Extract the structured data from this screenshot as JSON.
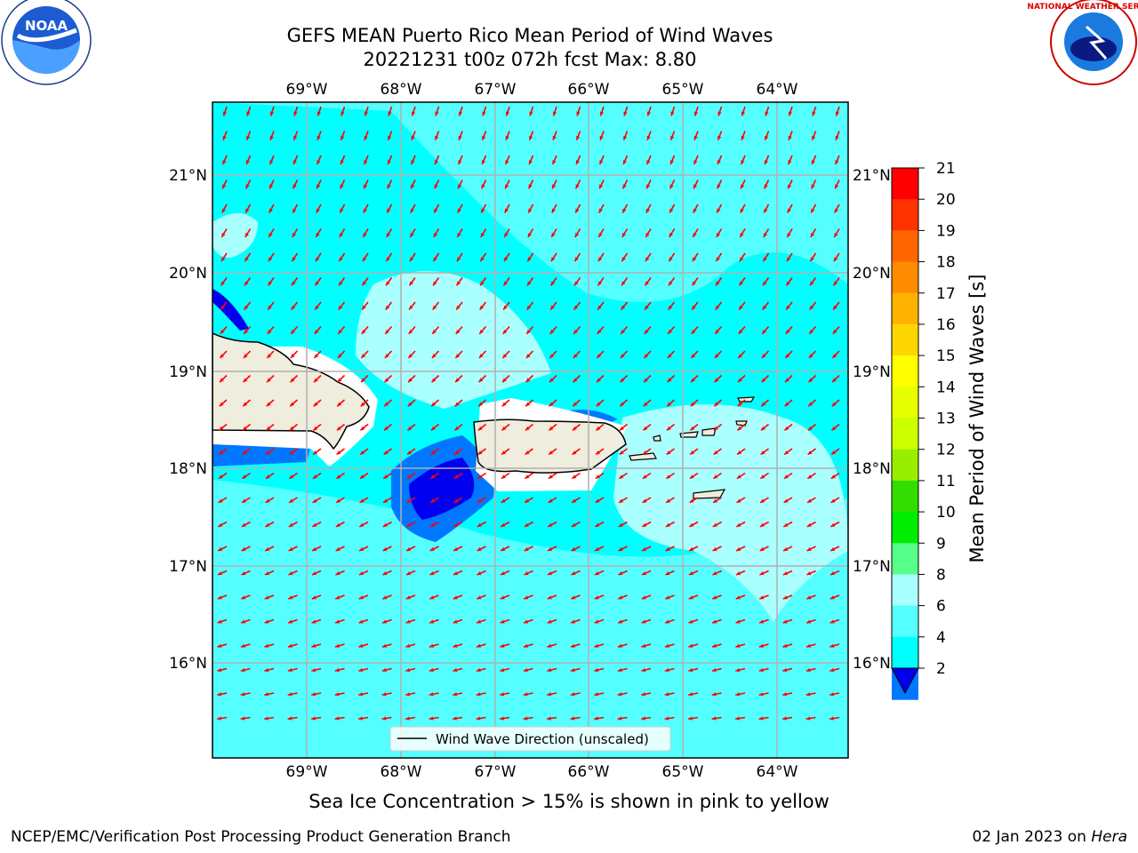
{
  "title": {
    "line1": "GEFS MEAN Puerto Rico Mean Period of Wind Waves",
    "line2": "20221231 t00z 072h fcst   Max: 8.80"
  },
  "map": {
    "lon_labels": [
      "69°W",
      "68°W",
      "67°W",
      "66°W",
      "65°W",
      "64°W"
    ],
    "lat_labels": [
      "21°N",
      "20°N",
      "19°N",
      "18°N",
      "17°N",
      "16°N"
    ],
    "legend_label": "Wind Wave Direction (unscaled)",
    "arrow_color": "#ff0000",
    "land_color": "#efedde",
    "grid_color": "#b0b0b0"
  },
  "colorbar": {
    "label": "Mean Period of Wind Waves [s]",
    "ticks": [
      "21",
      "20",
      "19",
      "18",
      "17",
      "16",
      "15",
      "14",
      "13",
      "12",
      "11",
      "10",
      "9",
      "8",
      "6",
      "4",
      "2"
    ],
    "colors": [
      "#ff0000",
      "#ff3300",
      "#ff6600",
      "#ff8c00",
      "#ffb300",
      "#ffd700",
      "#ffff00",
      "#e6ff00",
      "#ccff00",
      "#99ee00",
      "#33dd00",
      "#00ee00",
      "#55ff88",
      "#aaffff",
      "#55ffff",
      "#00ffff",
      "#0077ff"
    ],
    "extend_color": "#0000ee"
  },
  "logos": {
    "noaa_text": "NOAA",
    "nws_text": "NATIONAL WEATHER SERVICE"
  },
  "caption": "Sea Ice Concentration > 15% is shown in pink to yellow",
  "footer": {
    "left": "NCEP/EMC/Verification Post Processing Product Generation Branch",
    "date": "02 Jan 2023 on",
    "host": "Hera"
  }
}
